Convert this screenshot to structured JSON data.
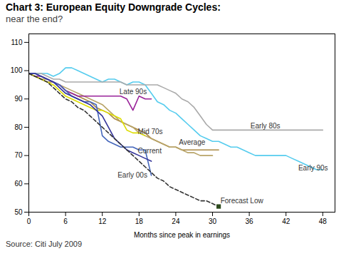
{
  "chart_data": {
    "type": "line",
    "title": "Chart 3: European Equity Downgrade Cycles:",
    "subtitle": "near the end?",
    "caption": "Source: Citi July 2009",
    "xlabel": "Months since peak in earnings",
    "xlim": [
      0,
      50
    ],
    "ylim": [
      50,
      113
    ],
    "xticks": [
      0,
      6,
      12,
      18,
      24,
      30,
      36,
      42,
      48
    ],
    "yticks": [
      50,
      60,
      70,
      80,
      90,
      100,
      110
    ],
    "grid": false,
    "series": [
      {
        "name": "Early 90s",
        "color": "#55CCEE",
        "x": [
          0,
          1,
          2,
          3,
          4,
          5,
          6,
          7,
          8,
          9,
          10,
          11,
          12,
          13,
          14,
          15,
          16,
          17,
          18,
          19,
          20,
          21,
          22,
          23,
          24,
          25,
          26,
          27,
          28,
          29,
          30,
          31,
          32,
          33,
          34,
          35,
          36,
          37,
          38,
          39,
          40,
          41,
          42,
          43,
          44,
          45,
          46,
          47,
          48
        ],
        "values": [
          99,
          99,
          99,
          99,
          98,
          99,
          101,
          101,
          100,
          99,
          98,
          97,
          96,
          97,
          97,
          96,
          95,
          96,
          96,
          95,
          92,
          89,
          88,
          86,
          85,
          83,
          81,
          79,
          77,
          76,
          75,
          75,
          74,
          73,
          73,
          72,
          71,
          70,
          70,
          70,
          70,
          70,
          70,
          69,
          68,
          67,
          66,
          65,
          65
        ]
      },
      {
        "name": "Early 80s",
        "color": "#AAAAAA",
        "x": [
          0,
          1,
          2,
          3,
          4,
          5,
          6,
          7,
          8,
          9,
          10,
          11,
          12,
          13,
          14,
          15,
          16,
          17,
          18,
          19,
          20,
          21,
          22,
          23,
          24,
          25,
          26,
          27,
          28,
          29,
          30,
          31,
          32,
          33,
          34,
          35,
          36,
          37,
          38,
          39,
          40,
          41,
          42,
          43,
          44,
          45,
          46,
          47,
          48
        ],
        "values": [
          99,
          99,
          99,
          98,
          97,
          97,
          96,
          96,
          96,
          96,
          96,
          96,
          96,
          96,
          96,
          96,
          95,
          95,
          95,
          95,
          95,
          95,
          94,
          93,
          92,
          90,
          89,
          87,
          84,
          81,
          79,
          79,
          79,
          79,
          79,
          79,
          79,
          79,
          79,
          79,
          79,
          79,
          79,
          79,
          79,
          79,
          79,
          79,
          79
        ]
      },
      {
        "name": "Average",
        "color": "#AA8844",
        "x": [
          0,
          1,
          2,
          3,
          4,
          5,
          6,
          7,
          8,
          9,
          10,
          11,
          12,
          13,
          14,
          15,
          16,
          17,
          18,
          19,
          20,
          21,
          22,
          23,
          24,
          25,
          26,
          27,
          28,
          29,
          30,
          31
        ],
        "values": [
          99,
          98,
          97,
          96,
          96,
          95,
          93,
          92,
          91,
          90,
          89,
          87,
          86,
          85,
          83,
          82,
          81,
          80,
          79,
          78,
          76,
          75,
          74,
          73,
          73,
          72,
          72,
          72,
          72,
          72,
          72,
          72
        ]
      },
      {
        "name": "Mid 70s",
        "color": "#B8A468",
        "x": [
          0,
          1,
          2,
          3,
          4,
          5,
          6,
          7,
          8,
          9,
          10,
          11,
          12,
          13,
          14,
          15,
          16,
          17,
          18,
          19,
          20,
          21,
          22,
          23,
          24,
          25,
          26,
          27,
          28,
          29,
          30
        ],
        "values": [
          99,
          98,
          97,
          97,
          96,
          95,
          94,
          93,
          92,
          91,
          90,
          89,
          88,
          86,
          84,
          82,
          81,
          80,
          78,
          77,
          76,
          75,
          74,
          73,
          73,
          72,
          71,
          71,
          70,
          70,
          70
        ]
      },
      {
        "name": "Late 90s",
        "color": "#992299",
        "x": [
          0,
          1,
          2,
          3,
          4,
          5,
          6,
          7,
          8,
          9,
          10,
          11,
          12,
          13,
          14,
          15,
          16,
          17,
          18,
          19,
          20
        ],
        "values": [
          99,
          98,
          98,
          97,
          96,
          95,
          93,
          92,
          91,
          91,
          91,
          91,
          91,
          91,
          91,
          91,
          90,
          86,
          91,
          90,
          90
        ]
      },
      {
        "color": "#DDDD00",
        "x": [
          0,
          1,
          2,
          3,
          4,
          5,
          6,
          7,
          8,
          9,
          10,
          11,
          12,
          13,
          14,
          15,
          16,
          17,
          18,
          19
        ],
        "values": [
          99,
          98,
          97,
          96,
          95,
          93,
          91,
          90,
          89,
          88,
          87,
          86,
          86,
          85,
          84,
          83,
          79,
          78,
          78,
          77
        ]
      },
      {
        "name": "Early 00s",
        "color": "#4466BB",
        "x": [
          0,
          1,
          2,
          3,
          4,
          5,
          6,
          7,
          8,
          9,
          10,
          11,
          12,
          13,
          14,
          15,
          16,
          17,
          18,
          19,
          20
        ],
        "values": [
          99,
          99,
          98,
          97,
          96,
          95,
          93,
          91,
          90,
          89,
          89,
          88,
          77,
          75,
          74,
          73,
          73,
          73,
          72,
          72,
          63
        ]
      },
      {
        "name": "Current",
        "color": "#333399",
        "x": [
          0,
          1,
          2,
          3,
          4,
          5,
          6,
          7,
          8,
          9,
          10,
          11,
          12,
          13,
          14,
          15,
          16,
          17,
          18,
          19,
          20
        ],
        "values": [
          99,
          99,
          98,
          97,
          96,
          94,
          92,
          91,
          90,
          89,
          88,
          86,
          84,
          80,
          76,
          74,
          72,
          71,
          70,
          69,
          68
        ]
      },
      {
        "name": "Forecast Low",
        "color": "#333333",
        "line_style": "dashed",
        "x": [
          0,
          1,
          2,
          3,
          4,
          5,
          6,
          7,
          8,
          9,
          10,
          11,
          12,
          13,
          14,
          15,
          16,
          17,
          18,
          19,
          20,
          21,
          22,
          23,
          24,
          25,
          26,
          27,
          28,
          29,
          30,
          31
        ],
        "values": [
          99,
          98,
          97,
          96,
          94,
          92,
          90,
          89,
          87,
          86,
          84,
          82,
          80,
          78,
          76,
          74,
          72,
          70,
          68,
          66,
          64,
          62,
          61,
          59,
          58,
          57,
          56,
          55,
          54,
          54,
          53,
          52
        ]
      },
      {
        "type": "scatter",
        "marker": "square",
        "color": "#2D4A1E",
        "x": [
          31
        ],
        "values": [
          52
        ]
      }
    ],
    "annotations": [
      {
        "text": "Late 90s",
        "x": 14.8,
        "y": 92.5
      },
      {
        "text": "Mid 70s",
        "x": 17.8,
        "y": 78.5
      },
      {
        "text": "Current",
        "x": 17.8,
        "y": 71.5
      },
      {
        "text": "Early 00s",
        "x": 14.5,
        "y": 63.0
      },
      {
        "text": "Average",
        "x": 24.5,
        "y": 74.5
      },
      {
        "text": "Early 80s",
        "x": 36.2,
        "y": 80.5
      },
      {
        "text": "Early 90s",
        "x": 44.0,
        "y": 65.5
      },
      {
        "text": "Forecast Low",
        "x": 31.3,
        "y": 54.0
      }
    ]
  }
}
